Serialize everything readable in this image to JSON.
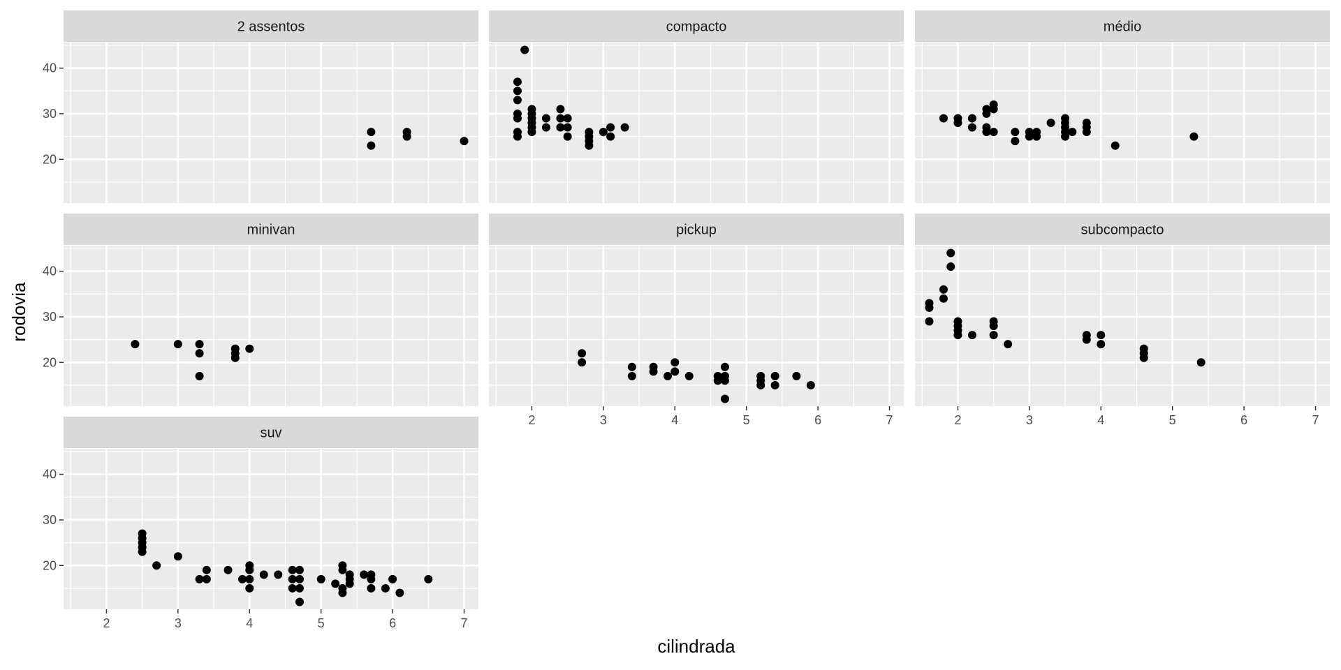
{
  "chart_data": {
    "type": "scatter",
    "facet_layout": "wrap",
    "xlabel": "cilindrada",
    "ylabel": "rodovia",
    "xlim": [
      1.4,
      7.2
    ],
    "ylim": [
      10.4,
      45.6
    ],
    "x_ticks": [
      2,
      3,
      4,
      5,
      6,
      7
    ],
    "y_ticks": [
      20,
      30,
      40
    ],
    "grid": true,
    "legend": "none",
    "point_color": "#000000",
    "panel_background": "#ebebeb",
    "strip_background": "#d9d9d9",
    "facets": [
      {
        "name": "2 assentos",
        "points": [
          [
            5.7,
            26
          ],
          [
            5.7,
            23
          ],
          [
            6.2,
            26
          ],
          [
            6.2,
            25
          ],
          [
            7.0,
            24
          ]
        ]
      },
      {
        "name": "compacto",
        "points": [
          [
            1.8,
            25
          ],
          [
            1.8,
            26
          ],
          [
            1.8,
            29
          ],
          [
            1.8,
            30
          ],
          [
            1.8,
            33
          ],
          [
            1.8,
            35
          ],
          [
            1.8,
            37
          ],
          [
            1.9,
            44
          ],
          [
            2.0,
            26
          ],
          [
            2.0,
            27
          ],
          [
            2.0,
            28
          ],
          [
            2.0,
            29
          ],
          [
            2.0,
            30
          ],
          [
            2.0,
            31
          ],
          [
            2.2,
            27
          ],
          [
            2.2,
            29
          ],
          [
            2.4,
            27
          ],
          [
            2.4,
            29
          ],
          [
            2.4,
            31
          ],
          [
            2.5,
            25
          ],
          [
            2.5,
            27
          ],
          [
            2.5,
            29
          ],
          [
            2.8,
            23
          ],
          [
            2.8,
            24
          ],
          [
            2.8,
            25
          ],
          [
            2.8,
            26
          ],
          [
            3.0,
            26
          ],
          [
            3.1,
            25
          ],
          [
            3.1,
            27
          ],
          [
            3.3,
            27
          ]
        ]
      },
      {
        "name": "médio",
        "points": [
          [
            1.8,
            29
          ],
          [
            2.0,
            28
          ],
          [
            2.0,
            29
          ],
          [
            2.2,
            27
          ],
          [
            2.2,
            29
          ],
          [
            2.4,
            26
          ],
          [
            2.4,
            27
          ],
          [
            2.4,
            30
          ],
          [
            2.4,
            31
          ],
          [
            2.5,
            26
          ],
          [
            2.5,
            31
          ],
          [
            2.5,
            32
          ],
          [
            2.8,
            24
          ],
          [
            2.8,
            26
          ],
          [
            3.0,
            25
          ],
          [
            3.0,
            26
          ],
          [
            3.1,
            25
          ],
          [
            3.1,
            26
          ],
          [
            3.3,
            28
          ],
          [
            3.5,
            25
          ],
          [
            3.5,
            26
          ],
          [
            3.5,
            27
          ],
          [
            3.5,
            28
          ],
          [
            3.5,
            29
          ],
          [
            3.6,
            26
          ],
          [
            3.8,
            26
          ],
          [
            3.8,
            27
          ],
          [
            3.8,
            28
          ],
          [
            4.2,
            23
          ],
          [
            5.3,
            25
          ]
        ]
      },
      {
        "name": "minivan",
        "points": [
          [
            2.4,
            24
          ],
          [
            3.0,
            24
          ],
          [
            3.3,
            17
          ],
          [
            3.3,
            22
          ],
          [
            3.3,
            24
          ],
          [
            3.8,
            21
          ],
          [
            3.8,
            22
          ],
          [
            3.8,
            23
          ],
          [
            4.0,
            23
          ]
        ]
      },
      {
        "name": "pickup",
        "points": [
          [
            2.7,
            20
          ],
          [
            2.7,
            22
          ],
          [
            3.4,
            17
          ],
          [
            3.4,
            19
          ],
          [
            3.7,
            18
          ],
          [
            3.7,
            19
          ],
          [
            3.9,
            17
          ],
          [
            4.0,
            18
          ],
          [
            4.0,
            20
          ],
          [
            4.2,
            17
          ],
          [
            4.6,
            16
          ],
          [
            4.6,
            17
          ],
          [
            4.7,
            12
          ],
          [
            4.7,
            16
          ],
          [
            4.7,
            17
          ],
          [
            4.7,
            19
          ],
          [
            5.2,
            15
          ],
          [
            5.2,
            16
          ],
          [
            5.2,
            17
          ],
          [
            5.4,
            15
          ],
          [
            5.4,
            17
          ],
          [
            5.7,
            17
          ],
          [
            5.9,
            15
          ]
        ]
      },
      {
        "name": "subcompacto",
        "points": [
          [
            1.6,
            29
          ],
          [
            1.6,
            32
          ],
          [
            1.6,
            33
          ],
          [
            1.8,
            34
          ],
          [
            1.8,
            36
          ],
          [
            1.9,
            41
          ],
          [
            1.9,
            44
          ],
          [
            2.0,
            26
          ],
          [
            2.0,
            27
          ],
          [
            2.0,
            28
          ],
          [
            2.0,
            29
          ],
          [
            2.2,
            26
          ],
          [
            2.5,
            26
          ],
          [
            2.5,
            28
          ],
          [
            2.5,
            29
          ],
          [
            2.7,
            24
          ],
          [
            3.8,
            25
          ],
          [
            3.8,
            26
          ],
          [
            4.0,
            24
          ],
          [
            4.0,
            26
          ],
          [
            4.6,
            21
          ],
          [
            4.6,
            22
          ],
          [
            4.6,
            23
          ],
          [
            5.4,
            20
          ]
        ]
      },
      {
        "name": "suv",
        "points": [
          [
            2.5,
            23
          ],
          [
            2.5,
            24
          ],
          [
            2.5,
            25
          ],
          [
            2.5,
            26
          ],
          [
            2.5,
            27
          ],
          [
            2.7,
            20
          ],
          [
            3.0,
            22
          ],
          [
            3.3,
            17
          ],
          [
            3.4,
            17
          ],
          [
            3.4,
            19
          ],
          [
            3.7,
            19
          ],
          [
            3.9,
            17
          ],
          [
            4.0,
            15
          ],
          [
            4.0,
            17
          ],
          [
            4.0,
            19
          ],
          [
            4.0,
            20
          ],
          [
            4.2,
            18
          ],
          [
            4.4,
            18
          ],
          [
            4.6,
            15
          ],
          [
            4.6,
            17
          ],
          [
            4.6,
            19
          ],
          [
            4.7,
            12
          ],
          [
            4.7,
            15
          ],
          [
            4.7,
            17
          ],
          [
            4.7,
            19
          ],
          [
            5.0,
            17
          ],
          [
            5.2,
            16
          ],
          [
            5.3,
            14
          ],
          [
            5.3,
            15
          ],
          [
            5.3,
            19
          ],
          [
            5.3,
            20
          ],
          [
            5.4,
            16
          ],
          [
            5.4,
            17
          ],
          [
            5.4,
            18
          ],
          [
            5.6,
            18
          ],
          [
            5.7,
            15
          ],
          [
            5.7,
            17
          ],
          [
            5.7,
            18
          ],
          [
            5.9,
            15
          ],
          [
            6.0,
            17
          ],
          [
            6.1,
            14
          ],
          [
            6.5,
            17
          ]
        ]
      }
    ]
  }
}
